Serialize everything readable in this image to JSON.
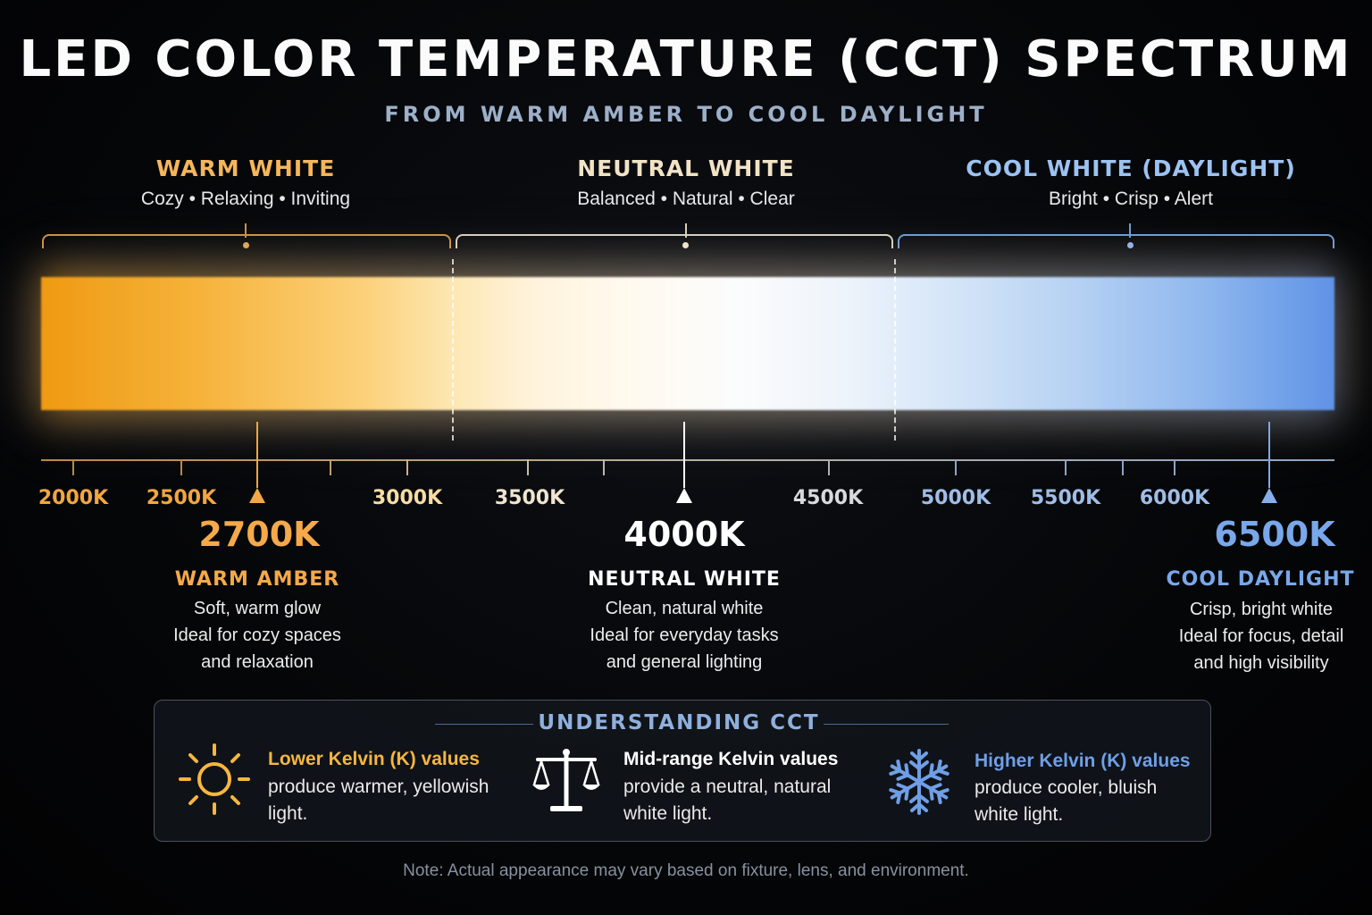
{
  "title": "LED COLOR TEMPERATURE (CCT) SPECTRUM",
  "subtitle": "FROM WARM AMBER TO COOL DAYLIGHT",
  "zones": [
    {
      "title": "WARM WHITE",
      "subtitle": "Cozy • Relaxing • Inviting",
      "color": "#f5b65a"
    },
    {
      "title": "NEUTRAL WHITE",
      "subtitle": "Balanced • Natural • Clear",
      "color": "#f2e3c6"
    },
    {
      "title": "COOL WHITE (DAYLIGHT)",
      "subtitle": "Bright • Crisp • Alert",
      "color": "#9cc2f2"
    }
  ],
  "axis": {
    "ticks": [
      {
        "label": "2000K",
        "color": "#f2a63f"
      },
      {
        "label": "2500K",
        "color": "#f2a63f"
      },
      {
        "label": "3000K",
        "color": "#f7dca4"
      },
      {
        "label": "3500K",
        "color": "#efe4cf"
      },
      {
        "label": "4500K",
        "color": "#d8d9dc"
      },
      {
        "label": "5000K",
        "color": "#9fbde6"
      },
      {
        "label": "5500K",
        "color": "#9fbde6"
      },
      {
        "label": "6000K",
        "color": "#9fbde6"
      }
    ]
  },
  "highlights": [
    {
      "value": "2700K",
      "label": "WARM AMBER",
      "desc": [
        "Soft, warm glow",
        "Ideal for cozy spaces",
        "and relaxation"
      ],
      "color": "#f5a94a"
    },
    {
      "value": "4000K",
      "label": "NEUTRAL WHITE",
      "desc": [
        "Clean, natural white",
        "Ideal for everyday tasks",
        "and general lighting"
      ],
      "color": "#ffffff"
    },
    {
      "value": "6500K",
      "label": "COOL DAYLIGHT",
      "desc": [
        "Crisp, bright white",
        "Ideal for focus, detail",
        "and high visibility"
      ],
      "color": "#79a8ea"
    }
  ],
  "panel": {
    "title": "UNDERSTANDING CCT",
    "items": [
      {
        "icon": "sun-icon",
        "head": "Lower Kelvin (K) values",
        "text": [
          "produce warmer, yellowish",
          "light."
        ],
        "color": "#f5b640"
      },
      {
        "icon": "scale-icon",
        "head": "Mid-range Kelvin values",
        "text": [
          "provide a neutral, natural",
          "white light."
        ],
        "color": "#ffffff"
      },
      {
        "icon": "snowflake-icon",
        "head": "Higher Kelvin (K) values",
        "text": [
          "produce cooler, bluish",
          "white light."
        ],
        "color": "#6f9fe6"
      }
    ]
  },
  "note": "Note: Actual appearance may vary based on fixture, lens, and environment."
}
